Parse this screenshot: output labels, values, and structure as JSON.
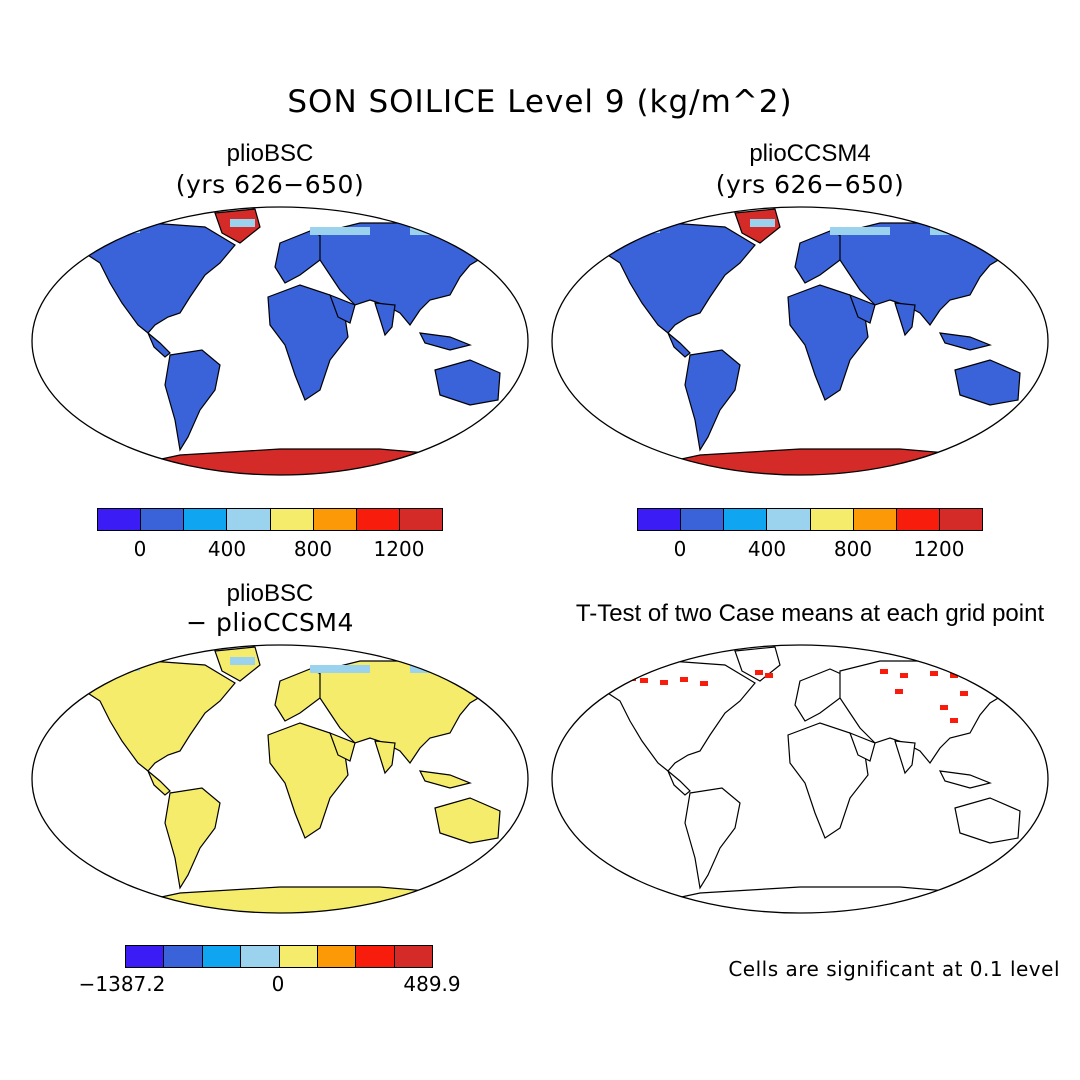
{
  "title": "SON SOILICE Level 9 (kg/m^2)",
  "panels": {
    "top_left": {
      "title": "plioBSC",
      "subtitle": "(yrs 626−650)"
    },
    "top_right": {
      "title": "plioCCSM4",
      "subtitle": "(yrs 626−650)"
    },
    "bottom_left": {
      "title": "plioBSC",
      "subtitle": "− plioCCSM4"
    },
    "bottom_right": {
      "title": "T-Test of two Case means at each grid point",
      "note": "Cells are significant at 0.1 level"
    }
  },
  "colorbar_abs": {
    "colors": [
      "#3b1cf5",
      "#3a62d9",
      "#10a5f0",
      "#9bd2ee",
      "#f6ec6b",
      "#fb9a06",
      "#f81c0c",
      "#d42a28"
    ],
    "ticks": [
      "0",
      "400",
      "800",
      "1200"
    ]
  },
  "colorbar_diff": {
    "colors": [
      "#3b1cf5",
      "#3a62d9",
      "#10a5f0",
      "#9bd2ee",
      "#f6ec6b",
      "#fb9a06",
      "#f81c0c",
      "#d42a28"
    ],
    "min_label": "−1387.2",
    "zero_label": "0",
    "max_label": "489.9"
  },
  "colors": {
    "land_abs": "#3a62d9",
    "land_diff": "#f6ec6b",
    "ice_high": "#d42a28",
    "ice_mid": "#9bd2ee",
    "significant": "#f81c0c",
    "coast": "#000000"
  }
}
